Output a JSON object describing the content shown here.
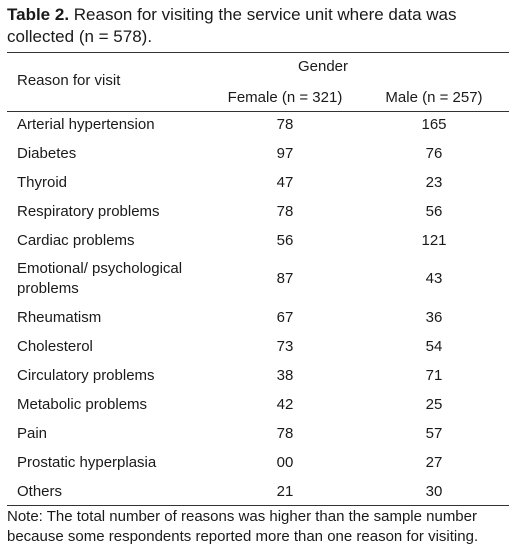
{
  "caption": {
    "label": "Table 2.",
    "text": "Reason for visiting the service unit where data was collected (n = 578)."
  },
  "header": {
    "reason": "Reason for visit",
    "gender": "Gender",
    "female": "Female (n = 321)",
    "male": "Male (n = 257)"
  },
  "rows": [
    {
      "reason": "Arterial hypertension",
      "female": "78",
      "male": "165"
    },
    {
      "reason": "Diabetes",
      "female": "97",
      "male": "76"
    },
    {
      "reason": "Thyroid",
      "female": "47",
      "male": "23"
    },
    {
      "reason": "Respiratory problems",
      "female": "78",
      "male": "56"
    },
    {
      "reason": "Cardiac problems",
      "female": "56",
      "male": "121"
    },
    {
      "reason": "Emotional/ psychological problems",
      "female": "87",
      "male": "43"
    },
    {
      "reason": "Rheumatism",
      "female": "67",
      "male": "36"
    },
    {
      "reason": "Cholesterol",
      "female": "73",
      "male": "54"
    },
    {
      "reason": "Circulatory problems",
      "female": "38",
      "male": "71"
    },
    {
      "reason": "Metabolic problems",
      "female": "42",
      "male": "25"
    },
    {
      "reason": "Pain",
      "female": "78",
      "male": "57"
    },
    {
      "reason": "Prostatic hyperplasia",
      "female": "00",
      "male": "27"
    },
    {
      "reason": "Others",
      "female": "21",
      "male": "30"
    }
  ],
  "note": "Note: The total number of reasons was higher than the sample number because some respondents reported more than one reason for visiting."
}
